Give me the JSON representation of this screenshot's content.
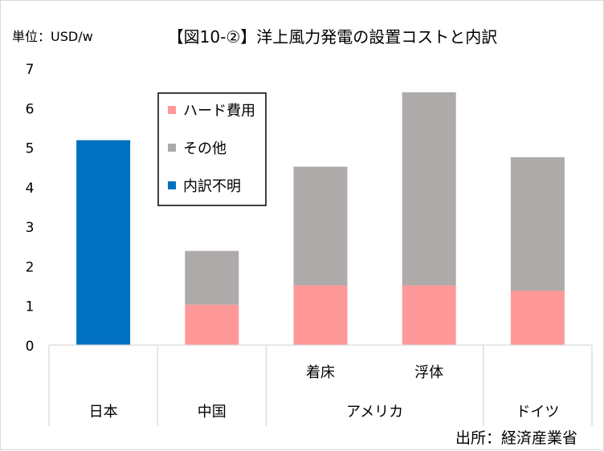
{
  "title": "【図10-②】洋上風力発電の設置コストと内訳",
  "unit_label": "単位：USD/w",
  "source": "出所：経済産業省",
  "colors": {
    "hardware": "#ff9999",
    "other": "#aeaaaa",
    "unknown": "#0070c0"
  },
  "chart_data": {
    "type": "bar",
    "stacked": true,
    "title": "【図10-②】洋上風力発電の設置コストと内訳",
    "ylabel": "単位：USD/w",
    "ylim": [
      0,
      7
    ],
    "yticks": [
      0,
      1,
      2,
      3,
      4,
      5,
      6,
      7
    ],
    "grid": false,
    "legend_position": "top-left-inside",
    "categories": [
      "日本",
      "中国",
      "着床",
      "浮体",
      "ドイツ"
    ],
    "category_groups": [
      {
        "label": "日本",
        "members": [
          "日本"
        ]
      },
      {
        "label": "中国",
        "members": [
          "中国"
        ]
      },
      {
        "label": "アメリカ",
        "members": [
          "着床",
          "浮体"
        ]
      },
      {
        "label": "ドイツ",
        "members": [
          "ドイツ"
        ]
      }
    ],
    "subcategory_labels": [
      "",
      "",
      "着床",
      "浮体",
      ""
    ],
    "series": [
      {
        "name": "ハード費用",
        "color": "#ff9999",
        "values": [
          0,
          1.02,
          1.51,
          1.51,
          1.37
        ]
      },
      {
        "name": "その他",
        "color": "#aeaaaa",
        "values": [
          0,
          1.36,
          3.0,
          4.88,
          3.38
        ]
      },
      {
        "name": "内訳不明",
        "color": "#0070c0",
        "values": [
          5.18,
          0,
          0,
          0,
          0
        ]
      }
    ],
    "legend_order": [
      "ハード費用",
      "その他",
      "内訳不明"
    ]
  }
}
